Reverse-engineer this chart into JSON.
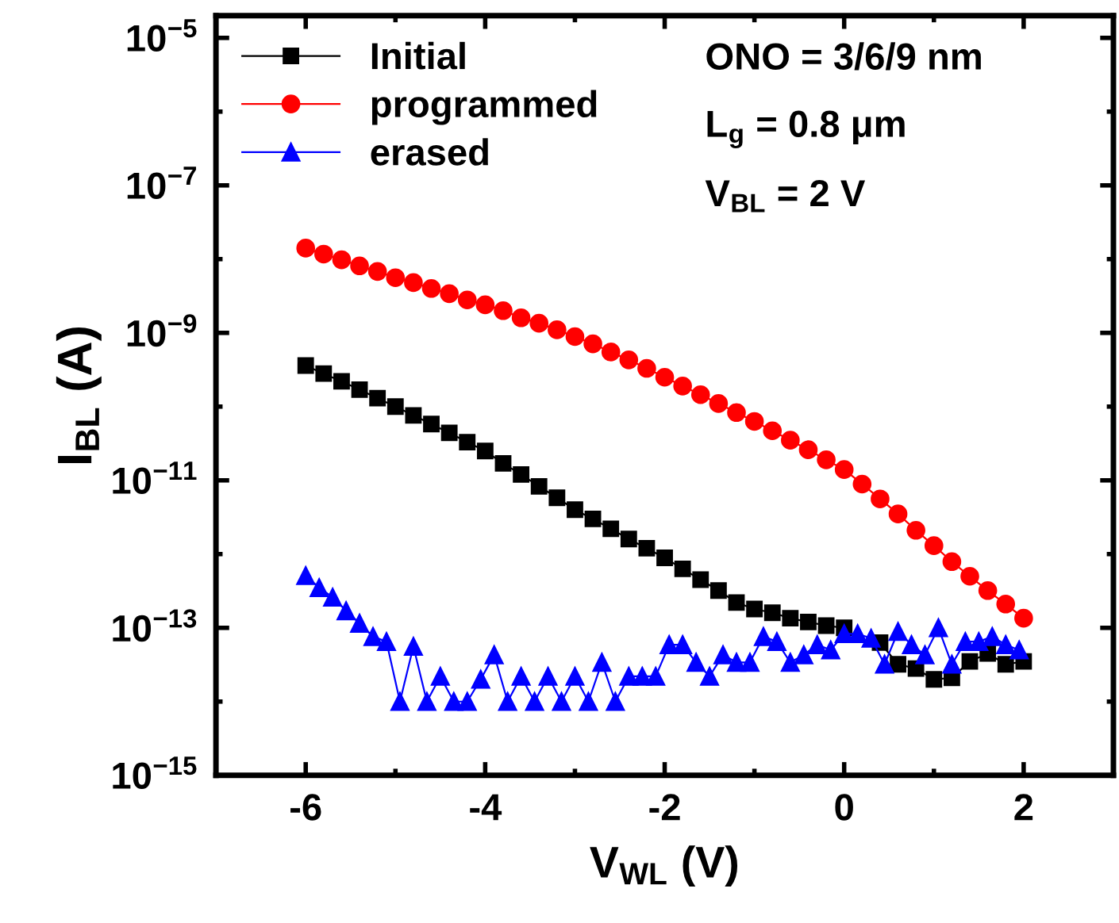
{
  "chart_data": {
    "type": "line",
    "xlabel": "V$_{WL}$ (V)",
    "ylabel": "I$_{BL}$ (A)",
    "x": [
      -6,
      -5.8,
      -5.6,
      -5.4,
      -5.2,
      -5,
      -4.8,
      -4.6,
      -4.4,
      -4.2,
      -4,
      -3.8,
      -3.6,
      -3.4,
      -3.2,
      -3,
      -2.8,
      -2.6,
      -2.4,
      -2.2,
      -2,
      -1.8,
      -1.6,
      -1.4,
      -1.2,
      -1,
      -0.8,
      -0.6,
      -0.4,
      -0.2,
      0,
      0.2,
      0.4,
      0.6,
      0.8,
      1,
      1.2,
      1.4,
      1.6,
      1.8,
      2
    ],
    "series": [
      {
        "name": "Initial",
        "color": "#000000",
        "marker": "square",
        "values": [
          3.6e-10,
          2.8e-10,
          2.2e-10,
          1.7e-10,
          1.3e-10,
          1e-10,
          7.6e-11,
          5.8e-11,
          4.4e-11,
          3.3e-11,
          2.5e-11,
          1.7e-11,
          1.2e-11,
          8.3e-12,
          5.8e-12,
          4e-12,
          3e-12,
          2.2e-12,
          1.6e-12,
          1.2e-12,
          8.9e-13,
          6.3e-13,
          4.5e-13,
          3.2e-13,
          2.2e-13,
          1.8e-13,
          1.6e-13,
          1.35e-13,
          1.2e-13,
          1.07e-13,
          1e-13,
          null,
          6.3e-14,
          3.2e-14,
          2.8e-14,
          2e-14,
          2.1e-14,
          3.5e-14,
          4.5e-14,
          3.2e-14,
          3.5e-14
        ]
      },
      {
        "name": "programmed",
        "color": "#ff0000",
        "marker": "circle",
        "values": [
          1.41e-08,
          1.17e-08,
          9.8e-09,
          8.1e-09,
          6.8e-09,
          5.6e-09,
          4.8e-09,
          4e-09,
          3.4e-09,
          2.8e-09,
          2.4e-09,
          2e-09,
          1.6e-09,
          1.35e-09,
          1.1e-09,
          8.9e-10,
          7.1e-10,
          5.5e-10,
          4.3e-10,
          3.3e-10,
          2.5e-10,
          1.9e-10,
          1.45e-10,
          1.1e-10,
          8.3e-11,
          6.3e-11,
          4.7e-11,
          3.5e-11,
          2.6e-11,
          1.9e-11,
          1.4e-11,
          8.9e-12,
          5.6e-12,
          3.5e-12,
          2.1e-12,
          1.3e-12,
          7.9e-13,
          5e-13,
          3.2e-13,
          2.1e-13,
          1.35e-13
        ]
      },
      {
        "name": "erased",
        "color": "#0000ff",
        "marker": "triangle",
        "x": [
          -6,
          -5.85,
          -5.7,
          -5.55,
          -5.4,
          -5.25,
          -5.1,
          -4.95,
          -4.8,
          -4.65,
          -4.5,
          -4.35,
          -4.2,
          -4.05,
          -3.9,
          -3.75,
          -3.6,
          -3.45,
          -3.3,
          -3.15,
          -3,
          -2.85,
          -2.7,
          -2.55,
          -2.4,
          -2.25,
          -2.1,
          -1.95,
          -1.8,
          -1.65,
          -1.5,
          -1.35,
          -1.2,
          -1.05,
          -0.9,
          -0.75,
          -0.6,
          -0.45,
          -0.3,
          -0.15,
          0,
          0.15,
          0.3,
          0.45,
          0.6,
          0.75,
          0.9,
          1.05,
          1.2,
          1.35,
          1.5,
          1.65,
          1.8,
          1.95
        ],
        "values": [
          5.1e-13,
          3.5e-13,
          2.6e-13,
          1.7e-13,
          1.15e-13,
          7.6e-14,
          6.5e-14,
          1e-14,
          5.6e-14,
          1e-14,
          2.2e-14,
          1e-14,
          1e-14,
          2e-14,
          4.3e-14,
          1e-14,
          2.2e-14,
          1e-14,
          2.2e-14,
          1e-14,
          2.2e-14,
          1e-14,
          3.4e-14,
          1e-14,
          2.2e-14,
          2.2e-14,
          2.2e-14,
          5.9e-14,
          5.9e-14,
          3.4e-14,
          2.2e-14,
          4.3e-14,
          3.4e-14,
          3.4e-14,
          7.6e-14,
          6.5e-14,
          3.4e-14,
          4.3e-14,
          5.9e-14,
          5e-14,
          8.3e-14,
          8.3e-14,
          7.2e-14,
          3.2e-14,
          8.9e-14,
          5.9e-14,
          4.3e-14,
          1e-13,
          3.2e-14,
          6.5e-14,
          6.5e-14,
          7.6e-14,
          5.9e-14,
          5e-14
        ]
      }
    ],
    "log": "y",
    "xlim": [
      -7,
      3
    ],
    "xticks": [
      {
        "value": -7,
        "label": null
      },
      -6,
      {
        "value": -5,
        "label": null
      },
      -4,
      {
        "value": -3,
        "label": null
      },
      -2,
      {
        "value": -1,
        "label": null
      },
      0,
      {
        "value": 1,
        "label": null
      },
      2,
      {
        "value": 3,
        "label": null
      }
    ],
    "ylim": [
      1e-15,
      2e-05
    ],
    "yticks": [
      {
        "value": 1e-15,
        "label": "10$^{−15}$"
      },
      {
        "value": 1e-14,
        "label": null
      },
      {
        "value": 1e-13,
        "label": "10$^{−13}$"
      },
      {
        "value": 1e-12,
        "label": null
      },
      {
        "value": 1e-11,
        "label": "10$^{−11}$"
      },
      {
        "value": 1e-10,
        "label": null
      },
      {
        "value": 1e-09,
        "label": "10$^{−9}$"
      },
      {
        "value": 1e-08,
        "label": null
      },
      {
        "value": 1e-07,
        "label": "10$^{−7}$"
      },
      {
        "value": 1e-06,
        "label": null
      },
      {
        "value": 1e-05,
        "label": "10$^{−5}$"
      }
    ],
    "grid": false,
    "legend": "top left",
    "line_style": "solid",
    "annotations": [
      "ONO = 3/6/9 nm",
      "L$_{g}$ = 0.8 μm",
      "V$_{BL}$ = 2 V"
    ]
  }
}
